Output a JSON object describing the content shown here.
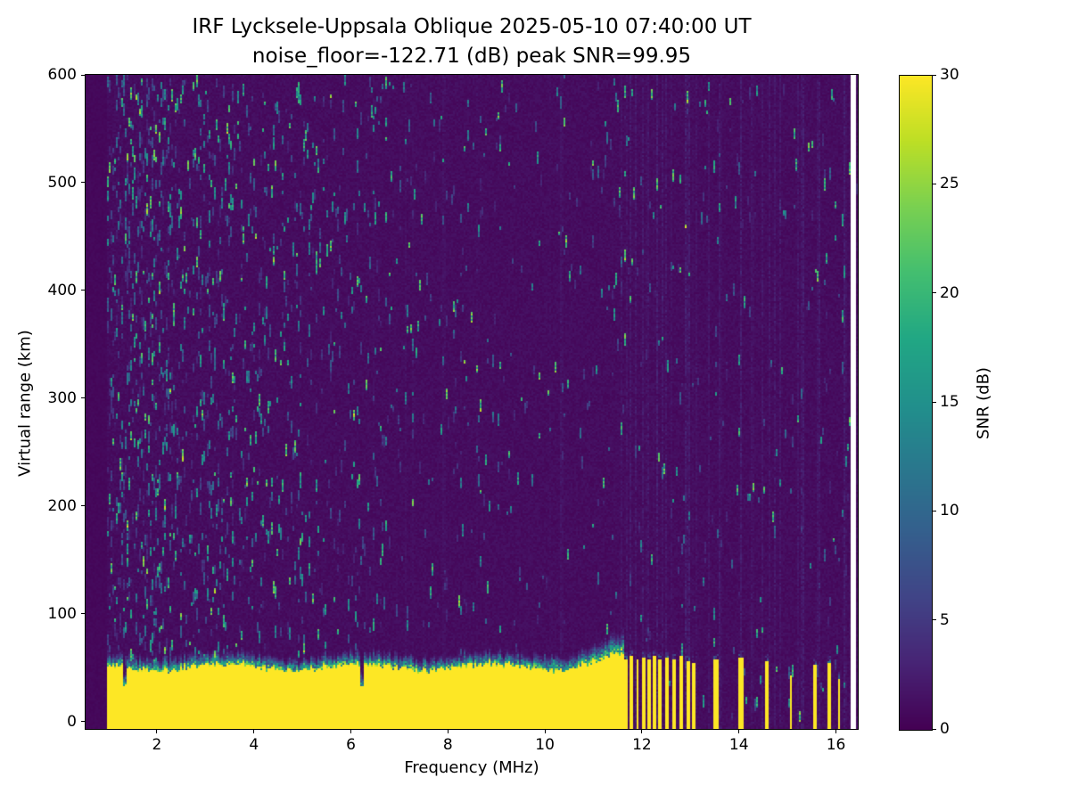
{
  "chart_data": {
    "type": "heatmap",
    "title_line1": "IRF Lycksele-Uppsala Oblique 2025-05-10 07:40:00  UT",
    "title_line2": "noise_floor=-122.71 (dB) peak SNR=99.95",
    "station": "IRF Lycksele-Uppsala Oblique",
    "timestamp_ut": "2025-05-10 07:40:00 UT",
    "noise_floor_db": -122.71,
    "peak_snr_db": 99.95,
    "xlabel": "Frequency (MHz)",
    "ylabel": "Virtual range (km)",
    "x_range": [
      0.53,
      16.45
    ],
    "y_range": [
      -7,
      600
    ],
    "x_ticks": [
      2,
      4,
      6,
      8,
      10,
      12,
      14,
      16
    ],
    "y_ticks": [
      0,
      100,
      200,
      300,
      400,
      500,
      600
    ],
    "grid": false,
    "colorbar": {
      "label": "SNR (dB)",
      "ticks": [
        0,
        5,
        10,
        15,
        20,
        25,
        30
      ],
      "range": [
        0,
        30
      ],
      "colormap": "viridis",
      "stops": [
        [
          0.0,
          "#440154"
        ],
        [
          0.1,
          "#482475"
        ],
        [
          0.2,
          "#414487"
        ],
        [
          0.3,
          "#355f8d"
        ],
        [
          0.4,
          "#2a788e"
        ],
        [
          0.5,
          "#21918c"
        ],
        [
          0.6,
          "#22a884"
        ],
        [
          0.7,
          "#44bf70"
        ],
        [
          0.8,
          "#7ad151"
        ],
        [
          0.9,
          "#bddf26"
        ],
        [
          1.0,
          "#fde725"
        ]
      ]
    },
    "features": {
      "seed": 7,
      "background_db": 0.5,
      "ground_band": {
        "f_min": 0.97,
        "f_max": 11.62,
        "top_km": 50,
        "fuzz_km": 16,
        "value_db": 30
      },
      "notches_mhz": [
        1.35,
        6.22
      ],
      "interference_stripes": [
        {
          "f": 11.68,
          "w": 0.07,
          "h": 58
        },
        {
          "f": 11.795,
          "w": 0.07,
          "h": 60
        },
        {
          "f": 11.91,
          "w": 0.07,
          "h": 57
        },
        {
          "f": 12.03,
          "w": 0.07,
          "h": 59
        },
        {
          "f": 12.14,
          "w": 0.07,
          "h": 58
        },
        {
          "f": 12.26,
          "w": 0.07,
          "h": 60
        },
        {
          "f": 12.38,
          "w": 0.07,
          "h": 57
        },
        {
          "f": 12.51,
          "w": 0.07,
          "h": 59
        },
        {
          "f": 12.65,
          "w": 0.07,
          "h": 58
        },
        {
          "f": 12.8,
          "w": 0.08,
          "h": 60
        },
        {
          "f": 12.95,
          "w": 0.07,
          "h": 56
        },
        {
          "f": 13.06,
          "w": 0.06,
          "h": 54
        },
        {
          "f": 13.53,
          "w": 0.08,
          "h": 57
        },
        {
          "f": 14.03,
          "w": 0.1,
          "h": 59
        },
        {
          "f": 14.57,
          "w": 0.08,
          "h": 56
        },
        {
          "f": 15.07,
          "w": 0.07,
          "h": 42
        },
        {
          "f": 15.57,
          "w": 0.06,
          "h": 52
        },
        {
          "f": 15.87,
          "w": 0.07,
          "h": 55
        },
        {
          "f": 16.07,
          "w": 0.05,
          "h": 40
        }
      ],
      "masked_white_band_mhz": [
        16.3,
        16.42
      ]
    }
  }
}
